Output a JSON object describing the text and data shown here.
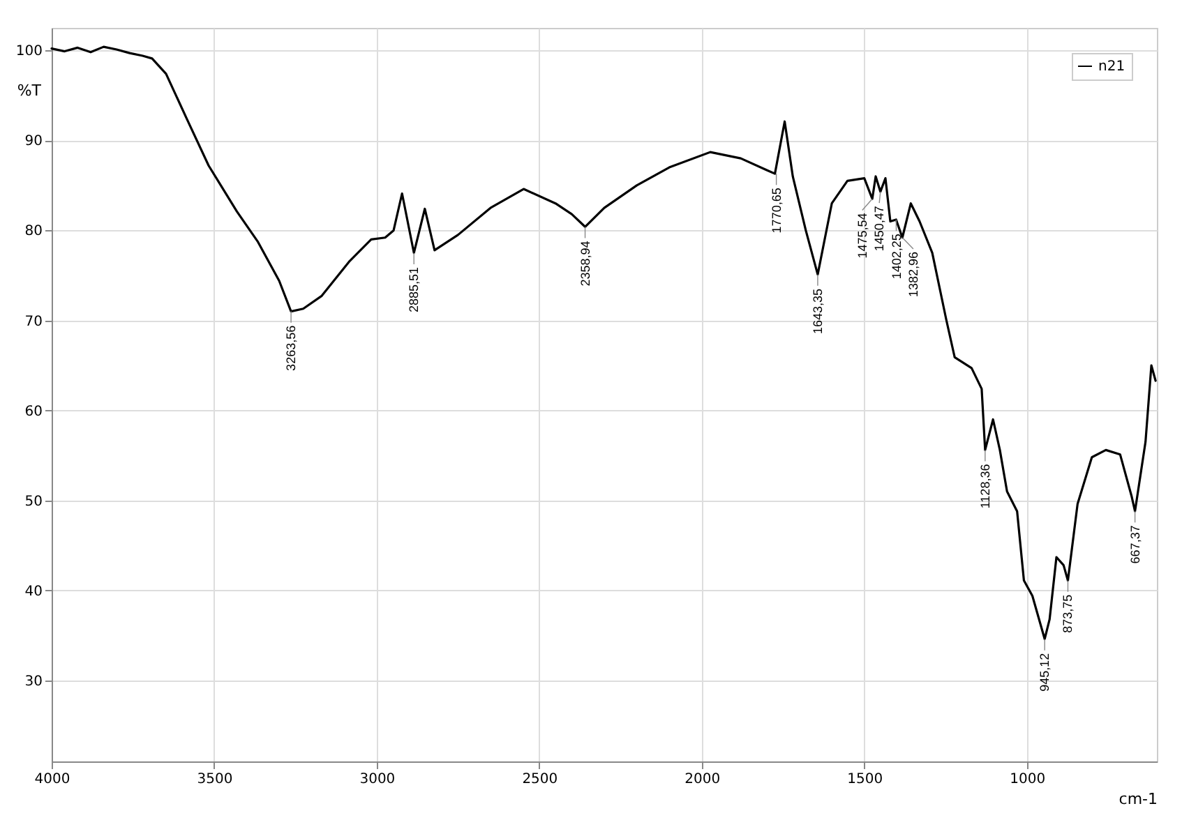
{
  "chart_data": {
    "type": "line",
    "xlabel": "cm-1",
    "ylabel": "%T",
    "xlim": [
      4000,
      600
    ],
    "ylim": [
      21,
      102.5
    ],
    "xticks": [
      4000,
      3500,
      3000,
      2500,
      2000,
      1500,
      1000
    ],
    "yticks": [
      30,
      40,
      50,
      60,
      70,
      80,
      90,
      100
    ],
    "grid": true,
    "legend": "top right",
    "marker": "none",
    "line_style": "solid",
    "series": [
      {
        "name": "n21",
        "color": "#000000",
        "x": [
          4000,
          3960,
          3920,
          3880,
          3840,
          3800,
          3760,
          3720,
          3691,
          3648,
          3583,
          3517,
          3430,
          3365,
          3300,
          3263.56,
          3226,
          3170,
          3083,
          3017,
          2974,
          2948,
          2922,
          2885.51,
          2852,
          2822,
          2750,
          2650,
          2548,
          2450,
          2400,
          2358.94,
          2300,
          2200,
          2100,
          1974,
          1880,
          1800,
          1775,
          1745,
          1720,
          1680,
          1643.35,
          1600,
          1552,
          1500,
          1475.54,
          1465,
          1450.47,
          1435,
          1420,
          1402.25,
          1382.96,
          1357,
          1330,
          1291,
          1248,
          1222,
          1170,
          1139,
          1128.36,
          1104,
          1083,
          1061,
          1030,
          1009,
          983,
          945.12,
          930,
          909,
          887,
          873.75,
          844,
          800,
          757,
          713,
          678,
          667.37,
          635,
          617,
          604
        ],
        "values": [
          100.2,
          99.9,
          100.3,
          99.8,
          100.4,
          100.1,
          99.7,
          99.4,
          99.1,
          97.4,
          92.3,
          87.2,
          82.1,
          78.7,
          74.4,
          71,
          71.3,
          72.7,
          76.6,
          79,
          79.2,
          80,
          84.1,
          77.5,
          82.4,
          77.8,
          79.5,
          82.5,
          84.6,
          83,
          81.8,
          80.4,
          82.5,
          85,
          87,
          88.7,
          88,
          86.7,
          86.3,
          92.1,
          86,
          80,
          75.1,
          83,
          85.5,
          85.8,
          83.5,
          86,
          84.3,
          85.8,
          81,
          81.2,
          79.2,
          83,
          81,
          77.5,
          70.1,
          65.9,
          64.7,
          62.4,
          55.6,
          59,
          55.6,
          51,
          48.8,
          41.1,
          39.4,
          34.6,
          36.8,
          43.7,
          42.8,
          41.1,
          49.6,
          54.8,
          55.6,
          55.1,
          50.5,
          48.8,
          56.5,
          65,
          63.3
        ]
      }
    ],
    "annotations": [
      {
        "text": "3263,56",
        "x": 3263.56,
        "y": 71
      },
      {
        "text": "2885,51",
        "x": 2885.51,
        "y": 77.5
      },
      {
        "text": "2358,94",
        "x": 2358.94,
        "y": 80.4
      },
      {
        "text": "1770,65",
        "x": 1770.65,
        "y": 86.3
      },
      {
        "text": "1643,35",
        "x": 1643.35,
        "y": 75.1
      },
      {
        "text": "1475,54",
        "x": 1475.54,
        "y": 83.5
      },
      {
        "text": "1450,47",
        "x": 1450.47,
        "y": 84.3
      },
      {
        "text": "1402,25",
        "x": 1402.25,
        "y": 81.2
      },
      {
        "text": "1382,96",
        "x": 1382.96,
        "y": 79.2
      },
      {
        "text": "1128,36",
        "x": 1128.36,
        "y": 55.6
      },
      {
        "text": "945,12",
        "x": 945.12,
        "y": 34.6
      },
      {
        "text": "873,75",
        "x": 873.75,
        "y": 41.1
      },
      {
        "text": "667,37",
        "x": 667.37,
        "y": 48.8
      }
    ]
  }
}
